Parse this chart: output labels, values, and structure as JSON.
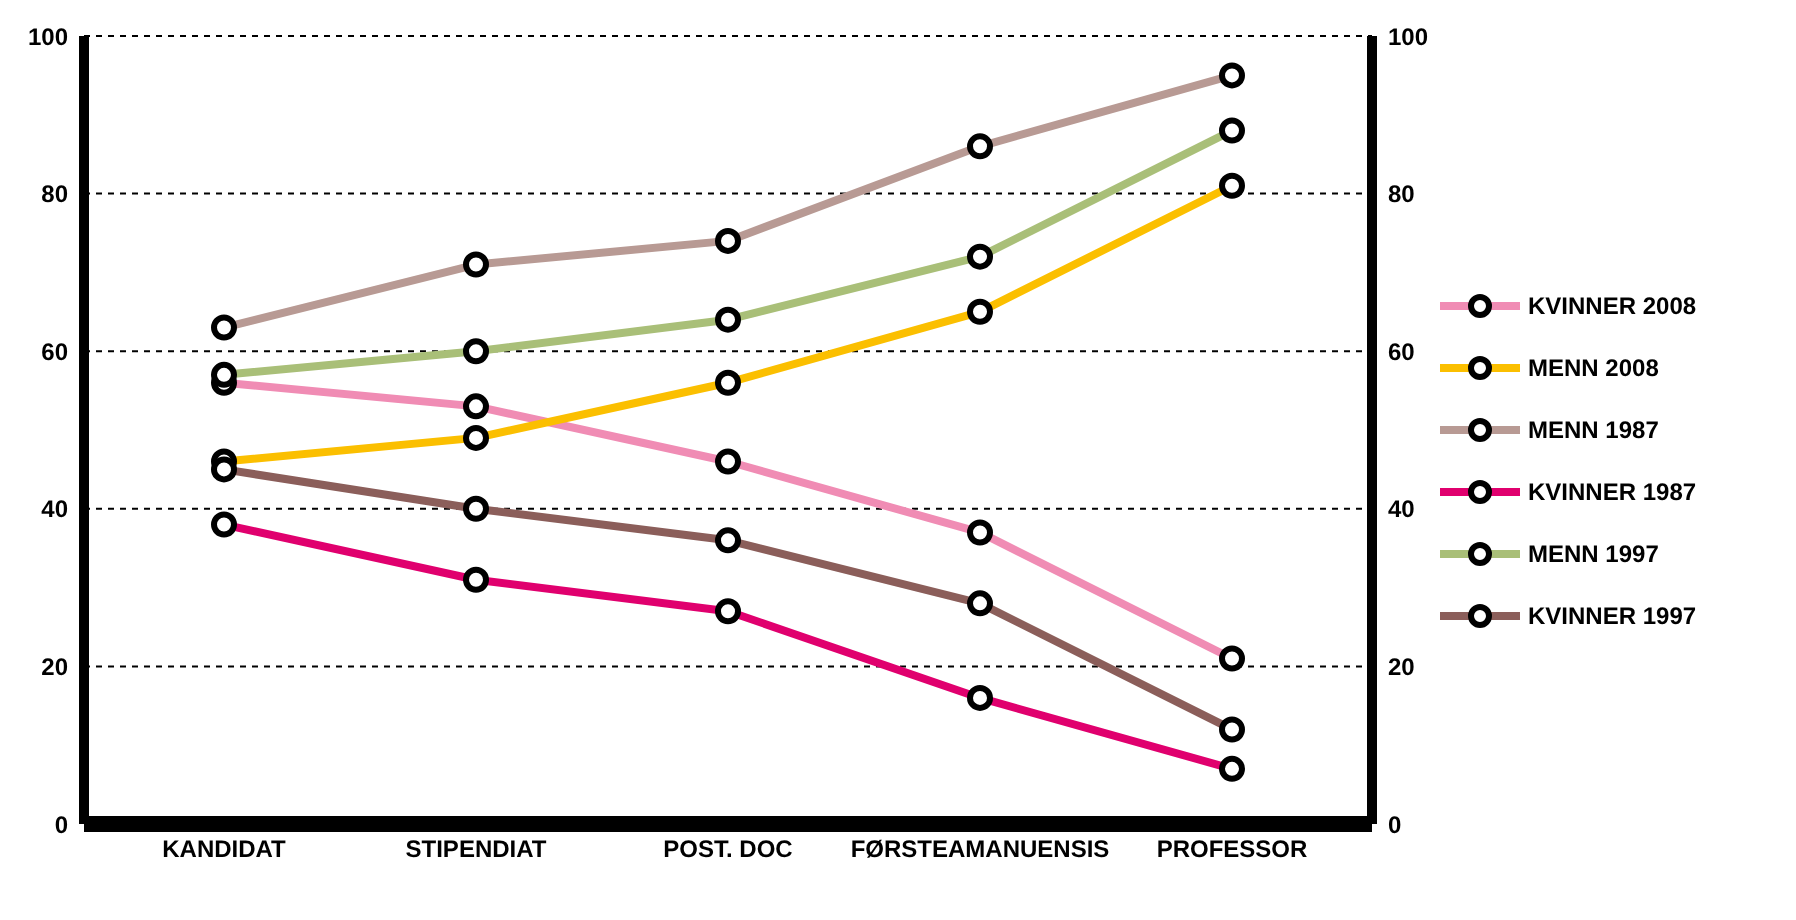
{
  "chart_data": {
    "type": "line",
    "categories": [
      "KANDIDAT",
      "STIPENDIAT",
      "POST. DOC",
      "FØRSTEAMANUENSIS",
      "PROFESSOR"
    ],
    "ylim": [
      0,
      100
    ],
    "yticks": [
      0,
      20,
      40,
      60,
      80,
      100
    ],
    "y2lim": [
      0,
      100
    ],
    "y2ticks": [
      0,
      20,
      40,
      60,
      80,
      100
    ],
    "grid": "y",
    "legend": "right",
    "marker": "circle",
    "line_style": "solid",
    "series": [
      {
        "name": "KVINNER 2008",
        "color": "#f08cb4",
        "values": [
          56,
          53,
          46,
          37,
          21
        ]
      },
      {
        "name": "MENN 2008",
        "color": "#fbbf00",
        "values": [
          46,
          49,
          56,
          65,
          81
        ]
      },
      {
        "name": "MENN 1987",
        "color": "#b89a94",
        "values": [
          63,
          71,
          74,
          86,
          95
        ]
      },
      {
        "name": "KVINNER 1987",
        "color": "#e0006e",
        "values": [
          38,
          31,
          27,
          16,
          7
        ]
      },
      {
        "name": "MENN 1997",
        "color": "#a9bf78",
        "values": [
          57,
          60,
          64,
          72,
          88
        ]
      },
      {
        "name": "KVINNER 1997",
        "color": "#8b5e5a",
        "values": [
          45,
          40,
          36,
          28,
          12
        ]
      }
    ]
  }
}
